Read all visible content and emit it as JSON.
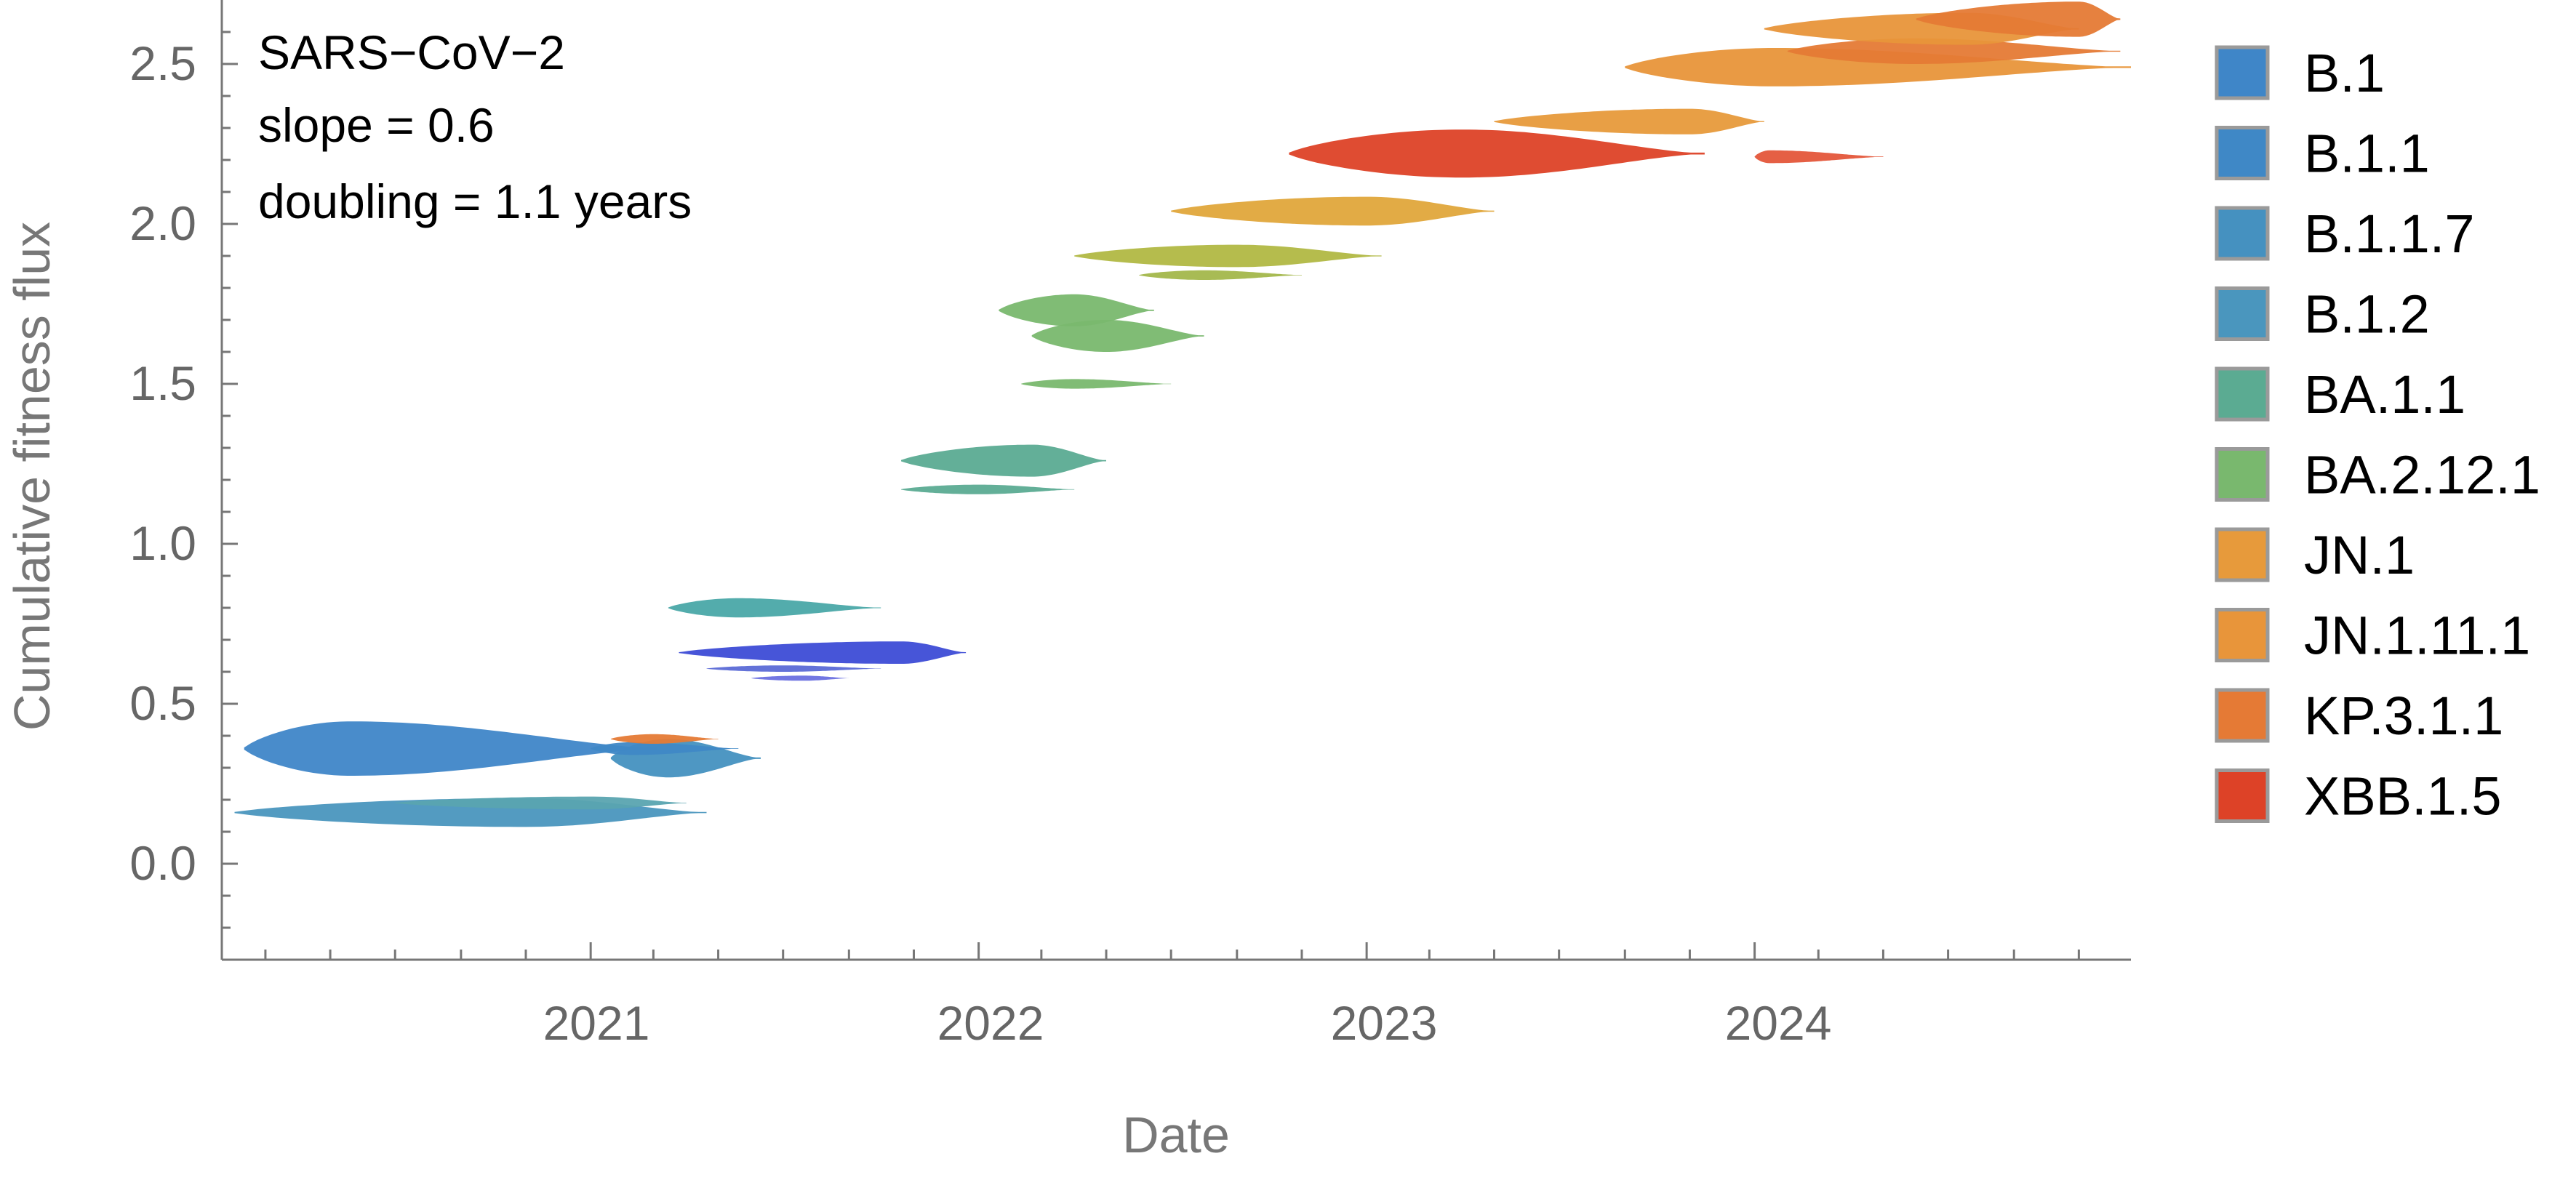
{
  "chart_data": {
    "type": "area",
    "title": "",
    "xlabel": "Date",
    "ylabel": "Cumulative fitness flux",
    "annotations": [
      "SARS−CoV−2",
      "slope = 0.6",
      "doubling = 1.1 years"
    ],
    "xlim": [
      "2020-01-20",
      "2024-12-20"
    ],
    "ylim": [
      -0.3,
      2.7
    ],
    "x_ticks": [
      "2021",
      "2022",
      "2023",
      "2024"
    ],
    "y_ticks": [
      "0.0",
      "0.5",
      "1.0",
      "1.5",
      "2.0",
      "2.5"
    ],
    "grid": false,
    "legend_position": "right",
    "legend": [
      {
        "name": "B.1",
        "color": "#3f86c8"
      },
      {
        "name": "B.1.1",
        "color": "#3f88c6"
      },
      {
        "name": "B.1.1.7",
        "color": "#4591c0"
      },
      {
        "name": "B.1.2",
        "color": "#4a96be"
      },
      {
        "name": "BA.1.1",
        "color": "#5bab92"
      },
      {
        "name": "BA.2.12.1",
        "color": "#79b86e"
      },
      {
        "name": "JN.1",
        "color": "#e79a3b"
      },
      {
        "name": "JN.1.11.1",
        "color": "#e8953a"
      },
      {
        "name": "KP.3.1.1",
        "color": "#e57a35"
      },
      {
        "name": "XBB.1.5",
        "color": "#dd4227"
      }
    ],
    "series": [
      {
        "start": "2020-02-10",
        "peak": "2020-05-20",
        "end": "2021-03-05",
        "y": 0.36,
        "width": 0.085,
        "color": "#3f86c8"
      },
      {
        "start": "2021-01-20",
        "peak": "2021-03-15",
        "end": "2021-06-10",
        "y": 0.33,
        "width": 0.06,
        "color": "#4591c0"
      },
      {
        "start": "2021-01-01",
        "peak": "2021-02-10",
        "end": "2021-05-20",
        "y": 0.36,
        "width": 0.02,
        "color": "#3f88c6"
      },
      {
        "start": "2020-02-01",
        "peak": "2020-11-01",
        "end": "2021-04-20",
        "y": 0.16,
        "width": 0.045,
        "color": "#4a96be"
      },
      {
        "start": "2020-07-01",
        "peak": "2021-01-01",
        "end": "2021-04-01",
        "y": 0.19,
        "width": 0.02,
        "color": "#5aa4b0"
      },
      {
        "start": "2021-01-20",
        "peak": "2021-03-01",
        "end": "2021-05-01",
        "y": 0.39,
        "width": 0.015,
        "color": "#e57a35"
      },
      {
        "start": "2021-03-15",
        "peak": "2021-05-20",
        "end": "2021-10-01",
        "y": 0.8,
        "width": 0.03,
        "color": "#4aa8a8"
      },
      {
        "start": "2021-03-25",
        "peak": "2021-10-20",
        "end": "2021-12-20",
        "y": 0.66,
        "width": 0.035,
        "color": "#3d4cd6"
      },
      {
        "start": "2021-04-20",
        "peak": "2021-07-01",
        "end": "2021-10-01",
        "y": 0.61,
        "width": 0.01,
        "color": "#5b6ad6"
      },
      {
        "start": "2021-06-01",
        "peak": "2021-07-20",
        "end": "2021-09-01",
        "y": 0.58,
        "width": 0.008,
        "color": "#6a70e0"
      },
      {
        "start": "2021-10-20",
        "peak": "2022-02-20",
        "end": "2022-05-01",
        "y": 1.26,
        "width": 0.05,
        "color": "#5bab92"
      },
      {
        "start": "2021-10-20",
        "peak": "2022-01-01",
        "end": "2022-04-01",
        "y": 1.17,
        "width": 0.015,
        "color": "#5bab92"
      },
      {
        "start": "2022-01-20",
        "peak": "2022-04-01",
        "end": "2022-06-15",
        "y": 1.73,
        "width": 0.05,
        "color": "#79b86e"
      },
      {
        "start": "2022-02-20",
        "peak": "2022-05-01",
        "end": "2022-08-01",
        "y": 1.65,
        "width": 0.05,
        "color": "#79b86e"
      },
      {
        "start": "2022-02-10",
        "peak": "2022-04-01",
        "end": "2022-07-01",
        "y": 1.5,
        "width": 0.015,
        "color": "#79b86e"
      },
      {
        "start": "2022-04-01",
        "peak": "2022-09-01",
        "end": "2023-01-15",
        "y": 1.9,
        "width": 0.035,
        "color": "#b1b843"
      },
      {
        "start": "2022-06-01",
        "peak": "2022-08-01",
        "end": "2022-11-01",
        "y": 1.84,
        "width": 0.015,
        "color": "#a3b74b"
      },
      {
        "start": "2022-07-01",
        "peak": "2023-01-01",
        "end": "2023-05-01",
        "y": 2.04,
        "width": 0.045,
        "color": "#e0a63b"
      },
      {
        "start": "2022-10-20",
        "peak": "2023-04-01",
        "end": "2023-11-15",
        "y": 2.22,
        "width": 0.075,
        "color": "#dd4227"
      },
      {
        "start": "2023-05-01",
        "peak": "2023-11-01",
        "end": "2024-01-10",
        "y": 2.32,
        "width": 0.04,
        "color": "#e79a3b"
      },
      {
        "start": "2024-01-01",
        "peak": "2024-01-15",
        "end": "2024-05-01",
        "y": 2.21,
        "width": 0.02,
        "color": "#e4563a"
      },
      {
        "start": "2023-09-01",
        "peak": "2024-01-20",
        "end": "2024-12-20",
        "y": 2.49,
        "width": 0.06,
        "color": "#e8953a"
      },
      {
        "start": "2024-02-01",
        "peak": "2024-06-01",
        "end": "2024-12-10",
        "y": 2.54,
        "width": 0.04,
        "color": "#e57a35"
      },
      {
        "start": "2024-01-10",
        "peak": "2024-07-20",
        "end": "2024-11-01",
        "y": 2.61,
        "width": 0.05,
        "color": "#e8953a"
      },
      {
        "start": "2024-06-01",
        "peak": "2024-11-01",
        "end": "2024-12-10",
        "y": 2.64,
        "width": 0.055,
        "color": "#e57a35"
      }
    ]
  }
}
